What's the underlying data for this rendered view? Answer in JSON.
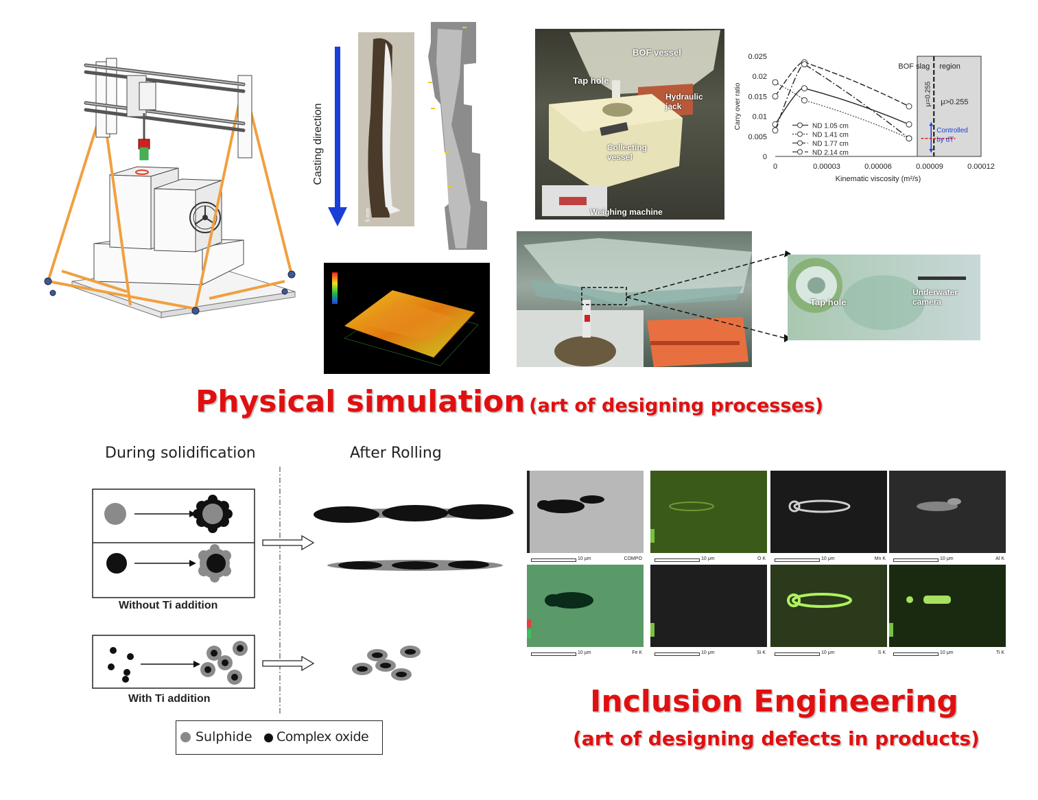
{
  "titles": {
    "physical_main": "Physical simulation",
    "physical_sub": "(art of designing processes)",
    "inclusion_main": "Inclusion Engineering",
    "inclusion_sub": "(art of designing defects in products)"
  },
  "casting": {
    "direction_label": "Casting direction",
    "scale": "5 mm"
  },
  "bof_photo": {
    "labels": [
      "BOF vessel",
      "Tap hole",
      "Hydraulic jack",
      "Collecting vessel",
      "Weighing machine"
    ]
  },
  "tap_photo": {
    "labels": [
      "Tap hole",
      "Underwater camera"
    ]
  },
  "chart_data": {
    "type": "line",
    "xlabel": "Kinematic viscosity (m²/s)",
    "ylabel": "Carry over ratio",
    "xlim": [
      0,
      0.00012
    ],
    "ylim": [
      0,
      0.025
    ],
    "x_ticks": [
      "0",
      "0.00003",
      "0.00006",
      "0.00009",
      "0.00012"
    ],
    "y_ticks": [
      "0",
      "0.005",
      "0.01",
      "0.015",
      "0.02",
      "0.025"
    ],
    "region_label_1": "BOF slag",
    "region_label_2": "region",
    "mu_label": "μ=0.255",
    "mu_gt_label": "μ>0.255",
    "controlled_label_1": "Controlled",
    "controlled_label_2": "by dT",
    "series": [
      {
        "name": "ND 1.05 cm",
        "x": [
          0,
          1.7e-05,
          7.8e-05
        ],
        "y": [
          0.008,
          0.017,
          0.008
        ]
      },
      {
        "name": "ND 1.41 cm",
        "x": [
          0,
          1.7e-05,
          7.8e-05
        ],
        "y": [
          0.0185,
          0.014,
          0.0045
        ]
      },
      {
        "name": "ND 1.77 cm",
        "x": [
          0,
          1.7e-05,
          7.8e-05
        ],
        "y": [
          0.015,
          0.0235,
          0.0125
        ]
      },
      {
        "name": "ND 2.14 cm",
        "x": [
          0,
          1.7e-05,
          7.8e-05
        ],
        "y": [
          0.0065,
          0.023,
          0.0045
        ]
      }
    ]
  },
  "solidification": {
    "header_left": "During solidification",
    "header_right": "After Rolling",
    "without_label": "Without Ti addition",
    "with_label": "With Ti addition",
    "legend_sulphide": "Sulphide",
    "legend_oxide": "Complex oxide"
  },
  "eds": {
    "scale": "10 μm",
    "tiles": [
      "COMPO",
      "O K",
      "Mn K",
      "Al K",
      "Fe K",
      "Si K",
      "S K",
      "Ti K"
    ]
  },
  "colors": {
    "title_red": "#e01010",
    "frame_orange": "#f0a040",
    "arrow_blue": "#1a3fd6"
  }
}
